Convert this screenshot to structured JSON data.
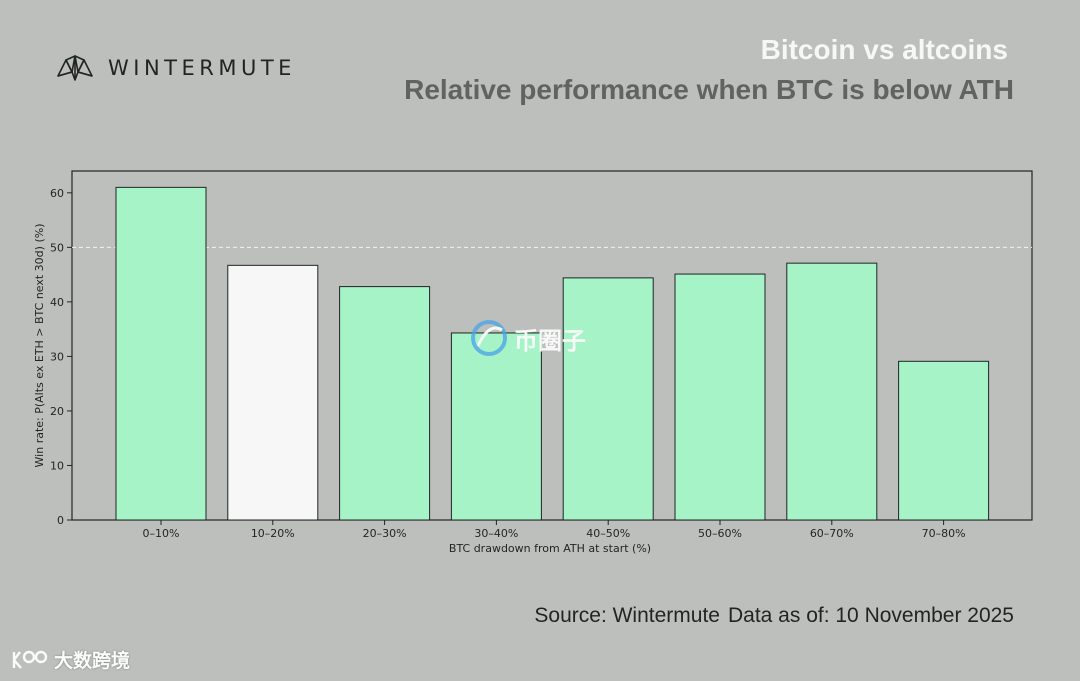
{
  "header": {
    "brand": "WINTERMUTE",
    "title": "Bitcoin vs altcoins",
    "subtitle": "Relative performance when BTC is below ATH"
  },
  "footer": {
    "source": "Source: Wintermute",
    "data_as_of": "Data as of: 10 November 2025"
  },
  "watermarks": {
    "center": "币圈子",
    "bottom": "大数跨境"
  },
  "colors": {
    "background": "#bcbfbc",
    "bar_green": "#a7f3c8",
    "bar_white": "#f7f7f7",
    "bar_edge": "#1f2523",
    "threshold_line": "#f2f2f2"
  },
  "chart_data": {
    "type": "bar",
    "title": "",
    "xlabel": "BTC drawdown from ATH at start (%)",
    "ylabel": "Win rate: P(Alts ex ETH > BTC next 30d) (%)",
    "categories": [
      "0–10%",
      "10–20%",
      "20–30%",
      "30–40%",
      "40–50%",
      "50–60%",
      "60–70%",
      "70–80%"
    ],
    "values": [
      61,
      46.7,
      42.8,
      34.3,
      44.4,
      45.1,
      47.1,
      29.1
    ],
    "bar_colors": [
      "#a7f3c8",
      "#f7f7f7",
      "#a7f3c8",
      "#a7f3c8",
      "#a7f3c8",
      "#a7f3c8",
      "#a7f3c8",
      "#a7f3c8"
    ],
    "ylim": [
      0,
      64
    ],
    "yticks": [
      0,
      10,
      20,
      30,
      40,
      50,
      60
    ],
    "reference_line": 50,
    "grid": false,
    "legend": "none"
  }
}
